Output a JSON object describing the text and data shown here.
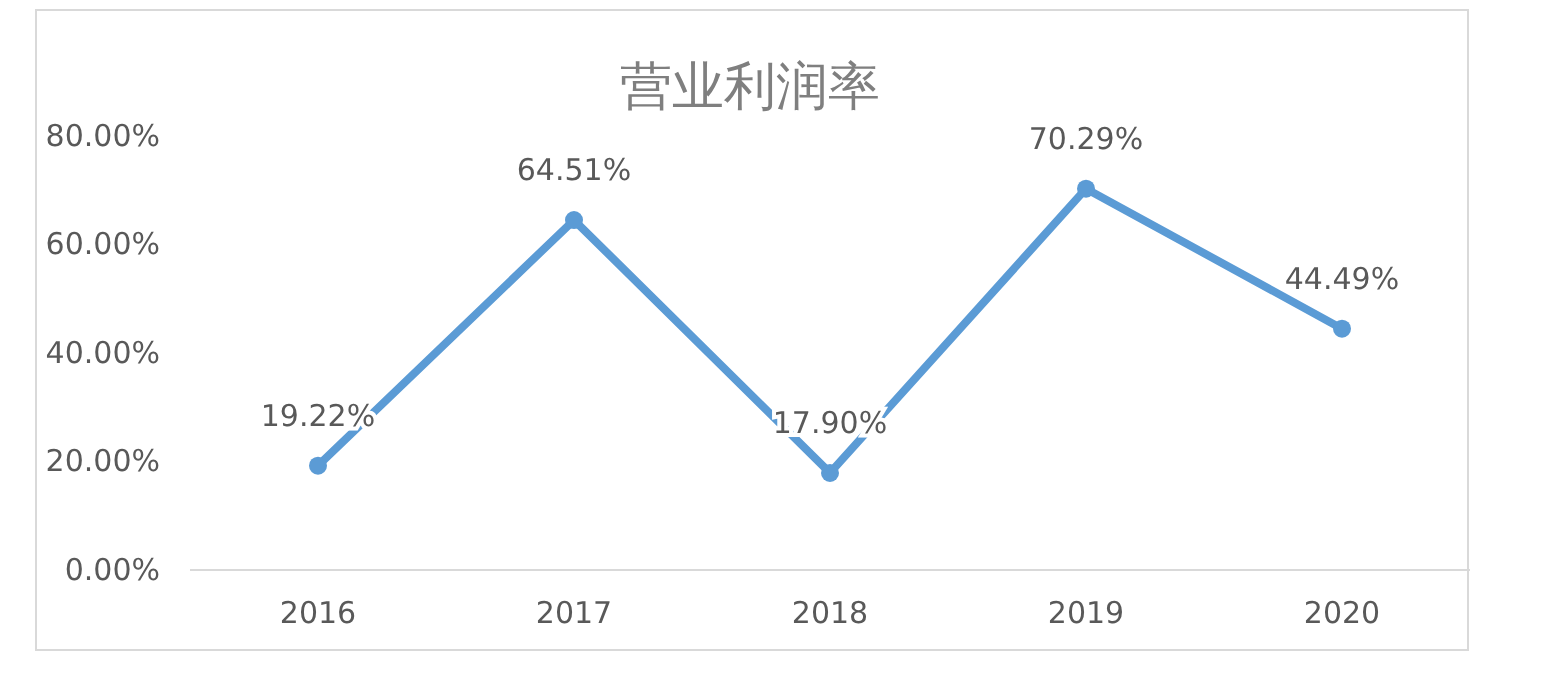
{
  "chart_data": {
    "type": "line",
    "title": "营业利润率",
    "categories": [
      "2016",
      "2017",
      "2018",
      "2019",
      "2020"
    ],
    "series": [
      {
        "color": "#5b9bd5",
        "values": [
          19.22,
          64.51,
          17.9,
          70.29,
          44.49
        ],
        "value_labels": [
          "19.22%",
          "64.51%",
          "17.90%",
          "70.29%",
          "44.49%"
        ]
      }
    ],
    "ylim": [
      0,
      80
    ],
    "yticks": [
      {
        "value": 0,
        "label": "0.00%"
      },
      {
        "value": 20,
        "label": "20.00%"
      },
      {
        "value": 40,
        "label": "40.00%"
      },
      {
        "value": 60,
        "label": "60.00%"
      },
      {
        "value": 80,
        "label": "80.00%"
      }
    ],
    "marker": "circle",
    "line_style": "solid"
  }
}
